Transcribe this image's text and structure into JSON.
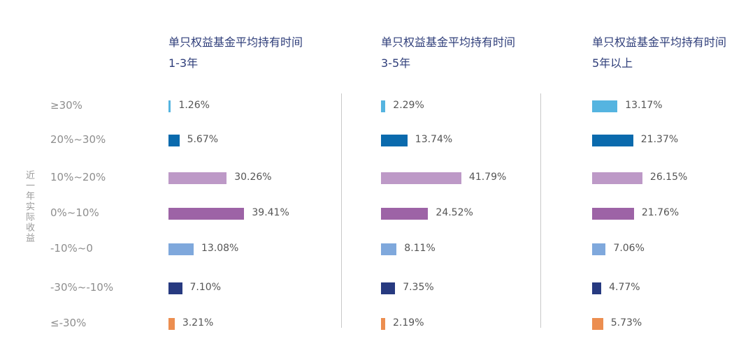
{
  "chart_data": {
    "type": "bar",
    "orientation": "horizontal",
    "side_label": "近一年实际收益",
    "categories": [
      "≥30%",
      "20%~30%",
      "10%~20%",
      "0%~10%",
      "-10%~0",
      "-30%~-10%",
      "≤-30%"
    ],
    "category_colors": [
      "#55b4e0",
      "#0a6aad",
      "#bd99c7",
      "#9d63a6",
      "#7fa8dc",
      "#273a80",
      "#ec8e50"
    ],
    "panels": [
      {
        "title_line1": "单只权益基金平均持有时间",
        "title_line2": "1-3年",
        "values": [
          1.26,
          5.67,
          30.26,
          39.41,
          13.08,
          7.1,
          3.21
        ],
        "value_labels": [
          "1.26%",
          "5.67%",
          "30.26%",
          "39.41%",
          "13.08%",
          "7.10%",
          "3.21%"
        ]
      },
      {
        "title_line1": "单只权益基金平均持有时间",
        "title_line2": "3-5年",
        "values": [
          2.29,
          13.74,
          41.79,
          24.52,
          8.11,
          7.35,
          2.19
        ],
        "value_labels": [
          "2.29%",
          "13.74%",
          "41.79%",
          "24.52%",
          "8.11%",
          "7.35%",
          "2.19%"
        ]
      },
      {
        "title_line1": "单只权益基金平均持有时间",
        "title_line2": "5年以上",
        "values": [
          13.17,
          21.37,
          26.15,
          21.76,
          7.06,
          4.77,
          5.73
        ],
        "value_labels": [
          "13.17%",
          "21.37%",
          "26.15%",
          "21.76%",
          "7.06%",
          "4.77%",
          "5.73%"
        ]
      }
    ],
    "grid": false,
    "legend": "none"
  }
}
